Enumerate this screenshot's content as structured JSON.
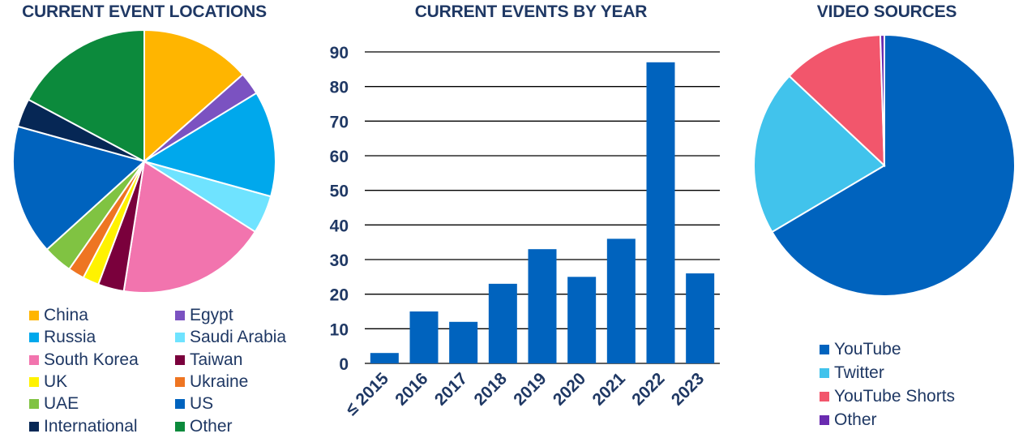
{
  "chart_data": [
    {
      "type": "pie",
      "title": "CURRENT EVENT LOCATIONS",
      "legend_position": "bottom",
      "slices": [
        {
          "label": "China",
          "value": 13.5,
          "color": "#ffb500"
        },
        {
          "label": "Egypt",
          "value": 2.8,
          "color": "#7b52c1"
        },
        {
          "label": "Russia",
          "value": 13.0,
          "color": "#00a8ec"
        },
        {
          "label": "Saudi Arabia",
          "value": 4.7,
          "color": "#6fe3ff"
        },
        {
          "label": "South Korea",
          "value": 18.5,
          "color": "#f274ae"
        },
        {
          "label": "Taiwan",
          "value": 3.2,
          "color": "#7a003c"
        },
        {
          "label": "UK",
          "value": 2.0,
          "color": "#fff200"
        },
        {
          "label": "Ukraine",
          "value": 2.0,
          "color": "#ee7522"
        },
        {
          "label": "UAE",
          "value": 3.6,
          "color": "#80c342"
        },
        {
          "label": "US",
          "value": 16.0,
          "color": "#0063be"
        },
        {
          "label": "International",
          "value": 3.5,
          "color": "#062755"
        },
        {
          "label": "Other",
          "value": 17.2,
          "color": "#0c8a3c"
        }
      ]
    },
    {
      "type": "bar",
      "title": "CURRENT EVENTS BY YEAR",
      "categories": [
        "≤ 2015",
        "2016",
        "2017",
        "2018",
        "2019",
        "2020",
        "2021",
        "2022",
        "2023"
      ],
      "values": [
        3,
        15,
        12,
        23,
        33,
        25,
        36,
        87,
        26
      ],
      "ylim": [
        0,
        90
      ],
      "yticks": [
        "0",
        "10",
        "20",
        "30",
        "40",
        "50",
        "60",
        "70",
        "80",
        "90"
      ],
      "grid": true,
      "color": "#0063be"
    },
    {
      "type": "pie",
      "title": "VIDEO SOURCES",
      "legend_position": "bottom",
      "slices": [
        {
          "label": "YouTube",
          "value": 66.5,
          "color": "#0063be"
        },
        {
          "label": "Twitter",
          "value": 20.5,
          "color": "#41c3ec"
        },
        {
          "label": "YouTube Shorts",
          "value": 12.5,
          "color": "#f2566c"
        },
        {
          "label": "Other",
          "value": 0.5,
          "color": "#6a2bb0"
        }
      ]
    }
  ]
}
